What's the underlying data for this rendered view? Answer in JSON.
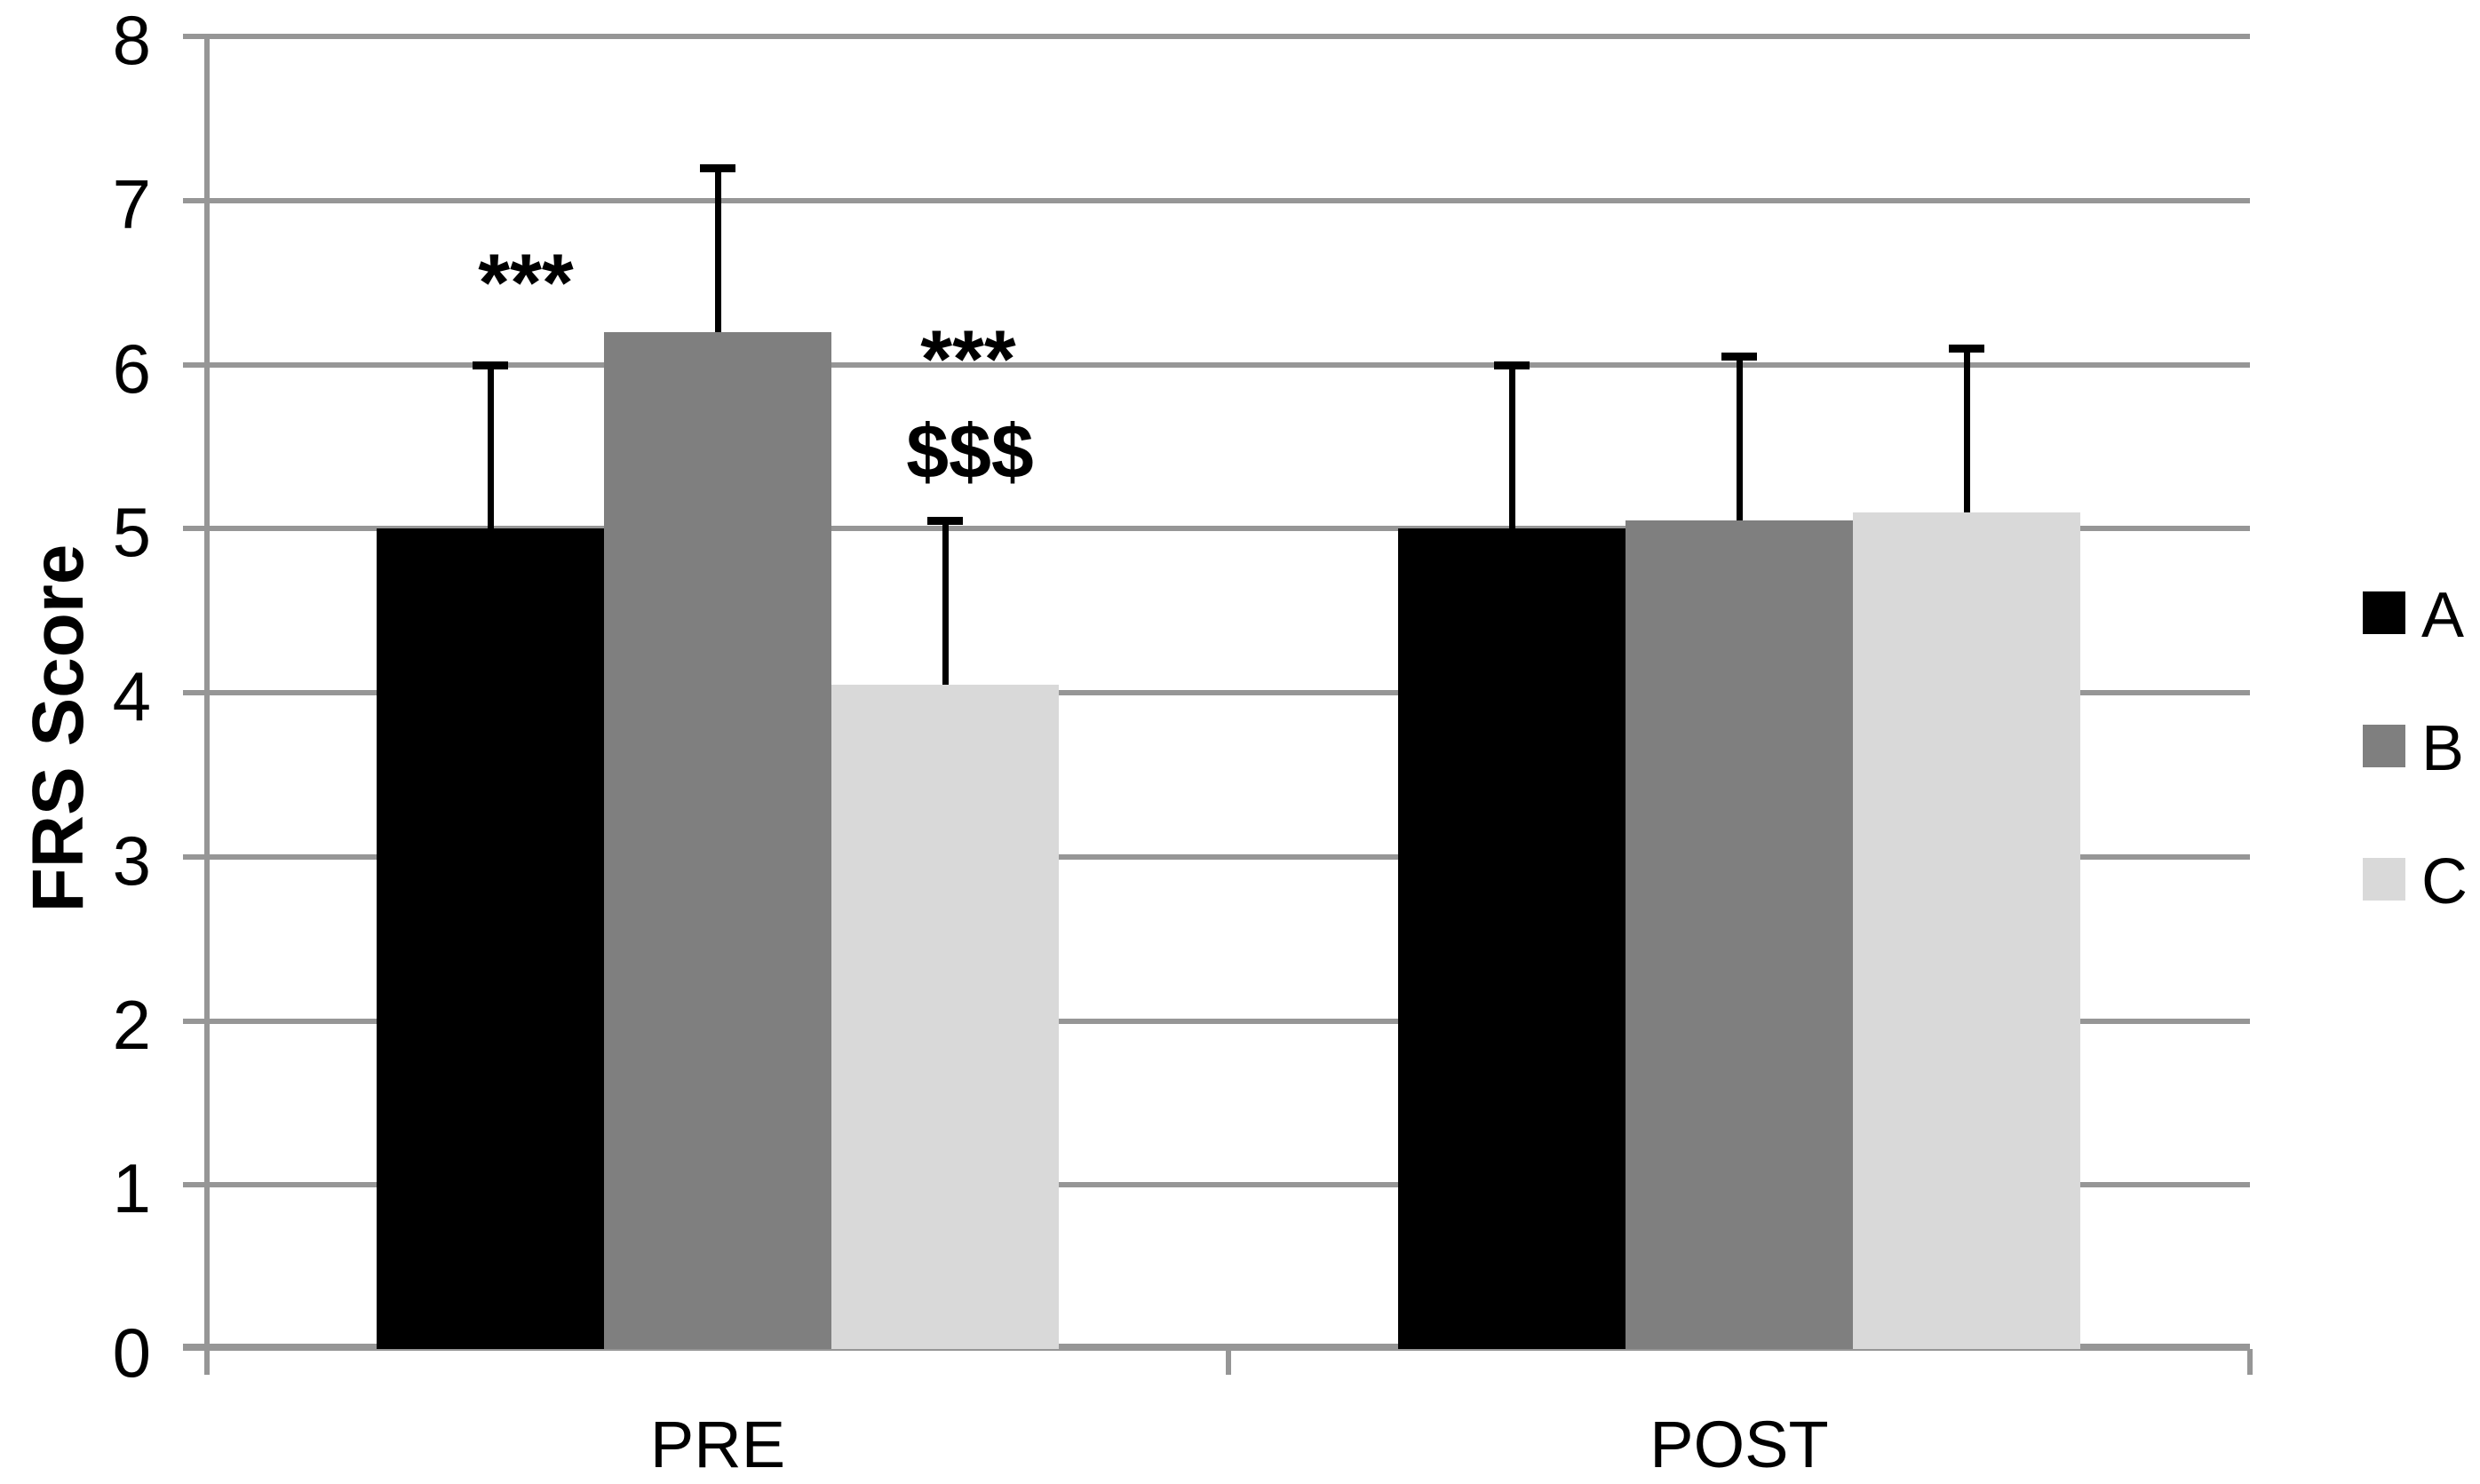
{
  "chart_data": {
    "type": "bar",
    "title": "",
    "xlabel": "",
    "ylabel": "FRS Score",
    "categories": [
      "PRE",
      "POST"
    ],
    "series": [
      {
        "name": "A",
        "color": "#000000",
        "values": [
          5.0,
          5.0
        ],
        "errors_plus": [
          1.0,
          1.0
        ]
      },
      {
        "name": "B",
        "color": "#7F7F7F",
        "values": [
          6.2,
          5.05
        ],
        "errors_plus": [
          1.0,
          1.0
        ]
      },
      {
        "name": "C",
        "color": "#D9D9D9",
        "values": [
          4.05,
          5.1
        ],
        "errors_plus": [
          1.0,
          1.0
        ]
      }
    ],
    "ylim": [
      0,
      8
    ],
    "yticks": [
      0,
      1,
      2,
      3,
      4,
      5,
      6,
      7,
      8
    ],
    "grid": "horizontal",
    "legend_position": "right",
    "annotations": [
      {
        "text": "***",
        "category": "PRE",
        "series": "A",
        "y_value": 6.6,
        "dx": 40,
        "style": "stars"
      },
      {
        "text": "***",
        "category": "PRE",
        "series": "C",
        "y_value": 6.13,
        "dx": 26,
        "style": "stars"
      },
      {
        "text": "$$$",
        "category": "PRE",
        "series": "C",
        "y_value": 5.5,
        "dx": 28,
        "style": "dollars"
      }
    ],
    "colors": {
      "grid": "#969696",
      "axis": "#969696",
      "error_bar": "#000000",
      "text": "#000000"
    }
  }
}
